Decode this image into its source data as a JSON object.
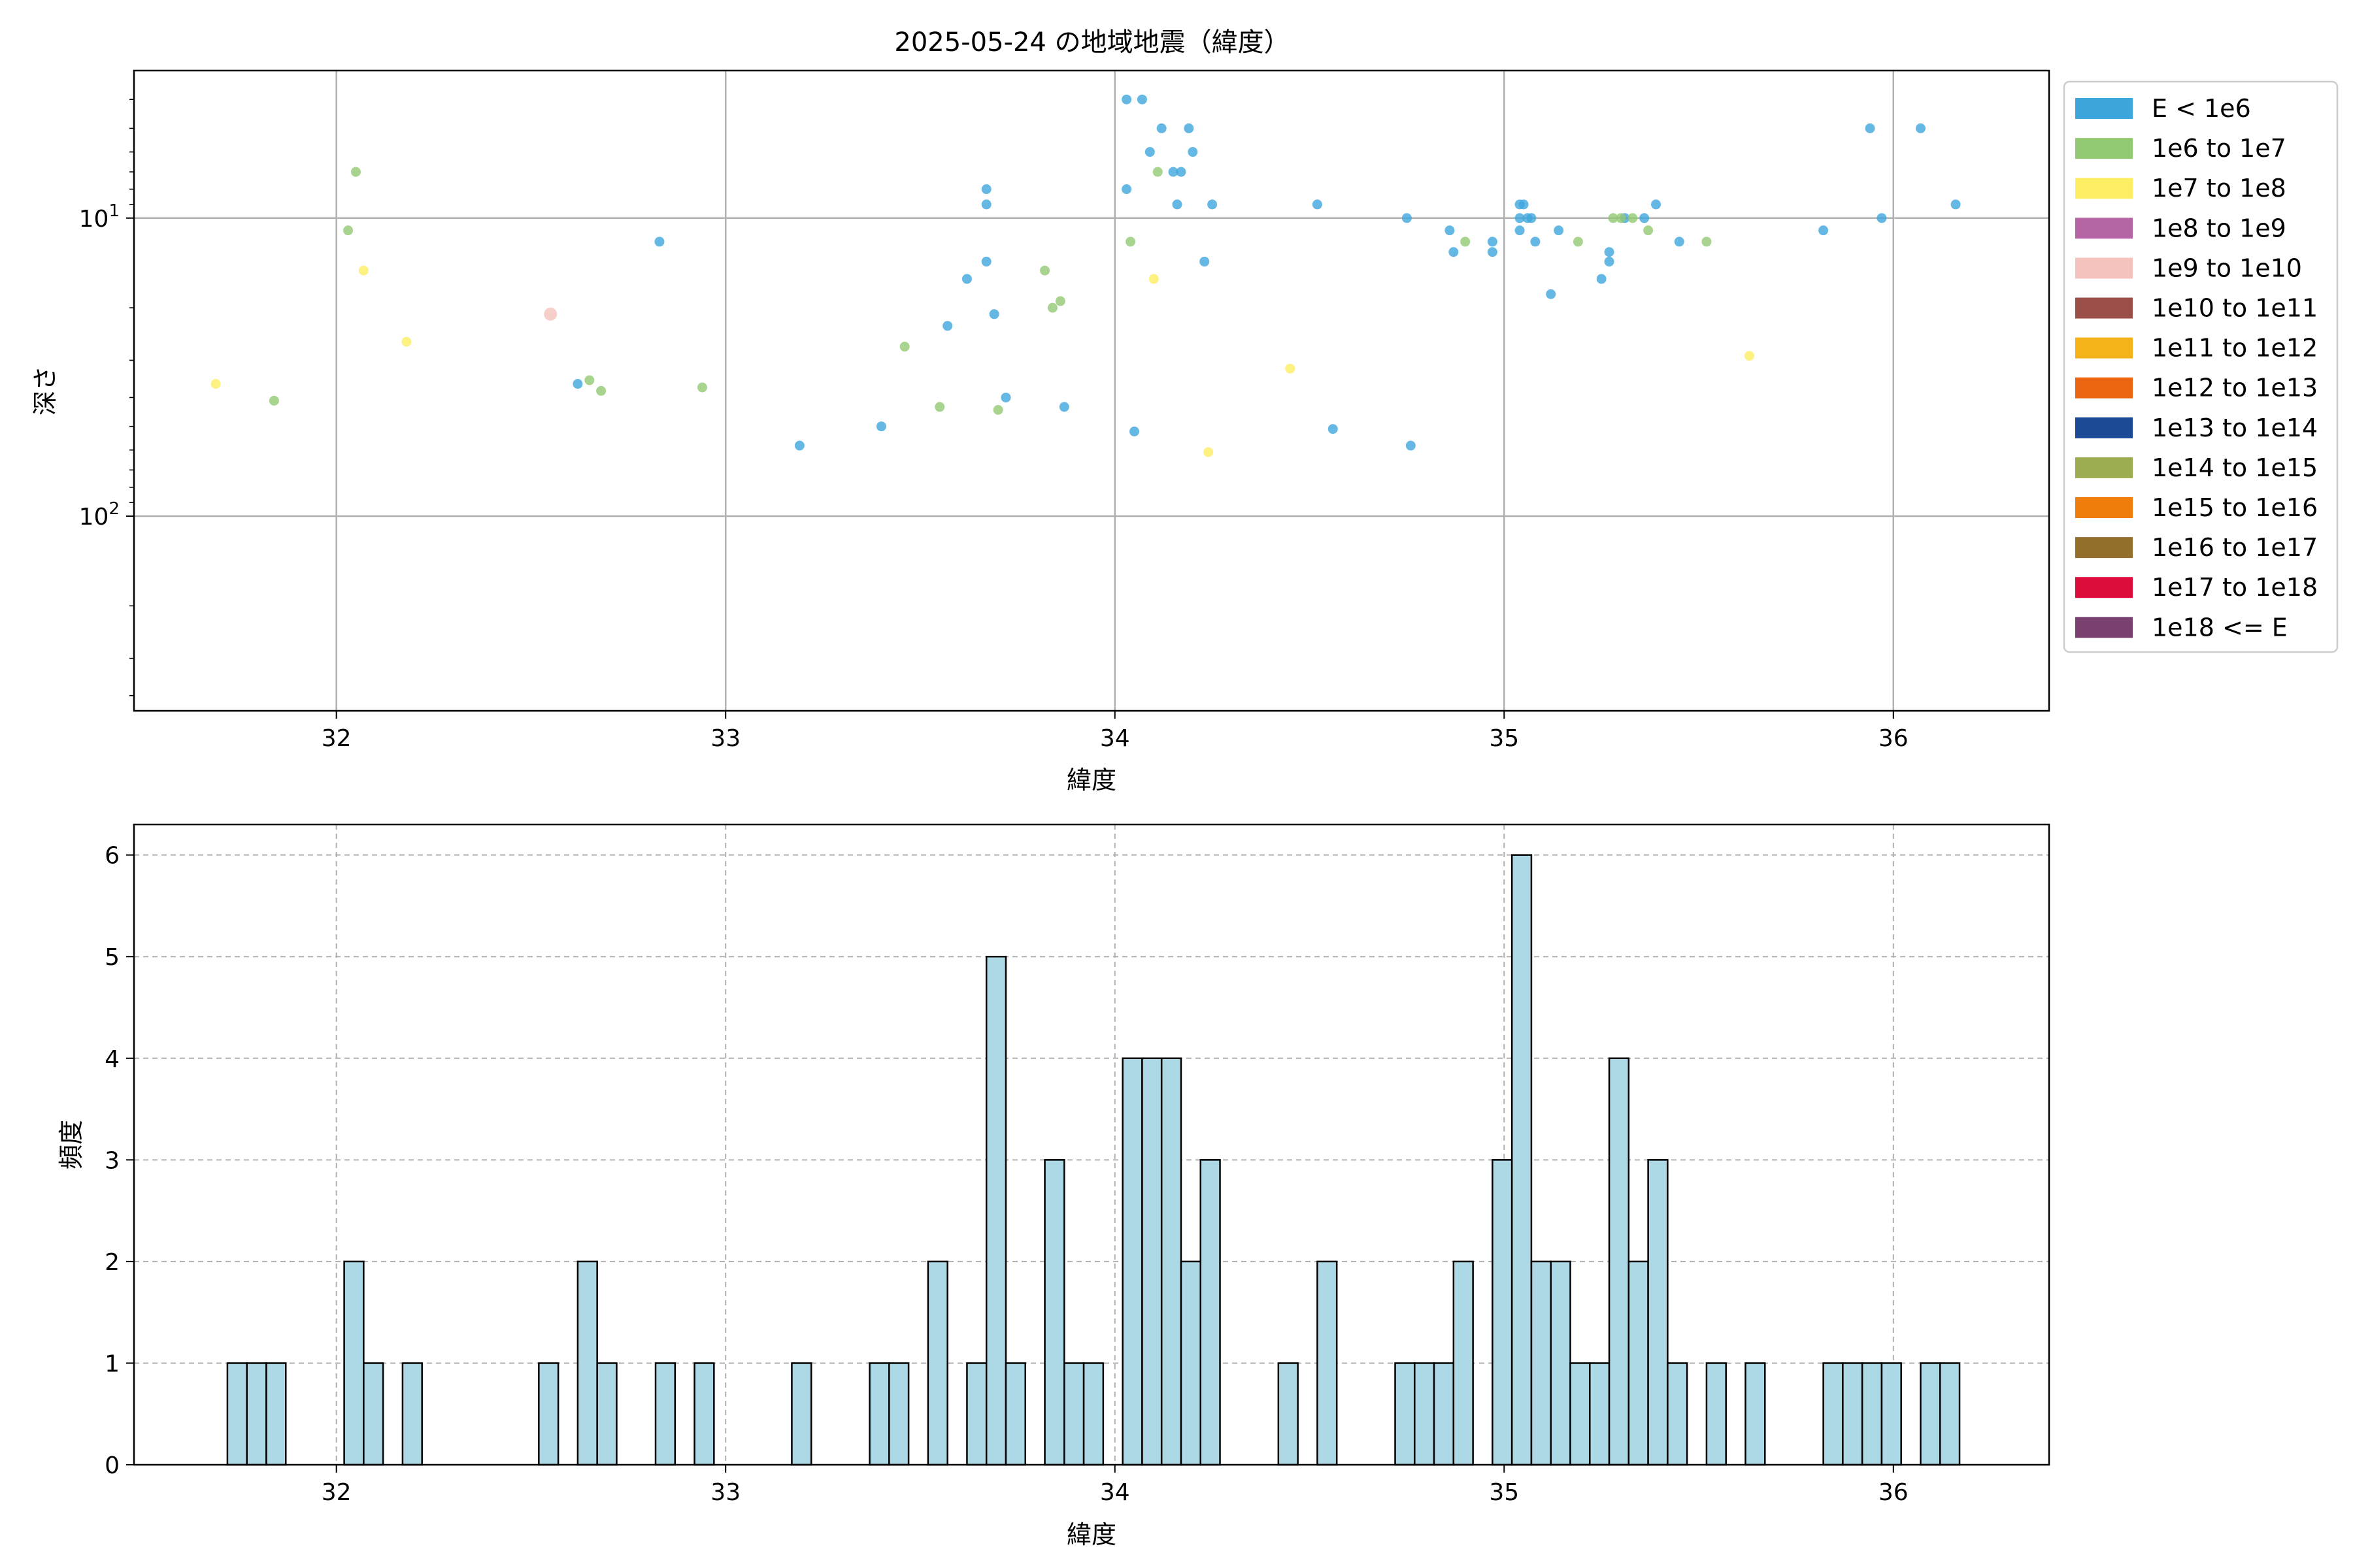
{
  "chart_data": [
    {
      "type": "scatter",
      "title": "2025-05-24 の地域地震（緯度）",
      "xlabel": "緯度",
      "ylabel": "深さ",
      "xlim": [
        31.48,
        36.4
      ],
      "ylim": [
        450,
        3.2
      ],
      "y_scale": "log",
      "y_inverted": true,
      "grid": true,
      "legend_placement": "outside-right",
      "x_ticks": [
        "32",
        "33",
        "34",
        "35",
        "36"
      ],
      "y_ticks": [
        {
          "value": 10,
          "label": "10^1"
        },
        {
          "value": 100,
          "label": "10^2"
        }
      ],
      "legend": [
        {
          "label": "E < 1e6",
          "color": "#3fa6dc"
        },
        {
          "label": "1e6 to 1e7",
          "color": "#93c973"
        },
        {
          "label": "1e7 to 1e8",
          "color": "#fdee63"
        },
        {
          "label": "1e8 to 1e9",
          "color": "#b565a4"
        },
        {
          "label": "1e9 to 1e10",
          "color": "#f5c3bd"
        },
        {
          "label": "1e10 to 1e11",
          "color": "#9a5048"
        },
        {
          "label": "1e11 to 1e12",
          "color": "#f6b319"
        },
        {
          "label": "1e12 to 1e13",
          "color": "#ec6513"
        },
        {
          "label": "1e13 to 1e14",
          "color": "#1d4a94"
        },
        {
          "label": "1e14 to 1e15",
          "color": "#9bac52"
        },
        {
          "label": "1e15 to 1e16",
          "color": "#ee7d0c"
        },
        {
          "label": "1e16 to 1e17",
          "color": "#946e2b"
        },
        {
          "label": "1e17 to 1e18",
          "color": "#dd0c3b"
        },
        {
          "label": "1e18 <= E",
          "color": "#7a4170"
        }
      ],
      "series": [
        {
          "class": 0,
          "points": [
            [
              32.62,
              36
            ],
            [
              32.83,
              12
            ],
            [
              33.19,
              58
            ],
            [
              33.4,
              50
            ],
            [
              33.57,
              23
            ],
            [
              33.62,
              16
            ],
            [
              33.67,
              14
            ],
            [
              33.67,
              9
            ],
            [
              33.67,
              8
            ],
            [
              33.69,
              21
            ],
            [
              33.72,
              40
            ],
            [
              33.87,
              43
            ],
            [
              34.03,
              8
            ],
            [
              34.03,
              4
            ],
            [
              34.05,
              52
            ],
            [
              34.07,
              4
            ],
            [
              34.09,
              6
            ],
            [
              34.12,
              5
            ],
            [
              34.15,
              7
            ],
            [
              34.16,
              9
            ],
            [
              34.17,
              7
            ],
            [
              34.19,
              5
            ],
            [
              34.2,
              6
            ],
            [
              34.23,
              14
            ],
            [
              34.25,
              9
            ],
            [
              34.52,
              9
            ],
            [
              34.56,
              51
            ],
            [
              34.75,
              10
            ],
            [
              34.76,
              58
            ],
            [
              34.86,
              11
            ],
            [
              34.87,
              13
            ],
            [
              34.97,
              12
            ],
            [
              34.97,
              13
            ],
            [
              35.04,
              9
            ],
            [
              35.04,
              10
            ],
            [
              35.04,
              11
            ],
            [
              35.05,
              9
            ],
            [
              35.06,
              10
            ],
            [
              35.07,
              10
            ],
            [
              35.08,
              12
            ],
            [
              35.12,
              18
            ],
            [
              35.14,
              11
            ],
            [
              35.25,
              16
            ],
            [
              35.27,
              14
            ],
            [
              35.27,
              13
            ],
            [
              35.31,
              10
            ],
            [
              35.36,
              10
            ],
            [
              35.39,
              9
            ],
            [
              35.45,
              12
            ],
            [
              35.82,
              11
            ],
            [
              35.94,
              5
            ],
            [
              35.97,
              10
            ],
            [
              36.07,
              5
            ],
            [
              36.16,
              9
            ]
          ]
        },
        {
          "class": 1,
          "points": [
            [
              31.84,
              41
            ],
            [
              32.03,
              11
            ],
            [
              32.05,
              7
            ],
            [
              32.65,
              35
            ],
            [
              32.68,
              38
            ],
            [
              32.94,
              37
            ],
            [
              33.46,
              27
            ],
            [
              33.55,
              43
            ],
            [
              33.7,
              44
            ],
            [
              33.82,
              15
            ],
            [
              33.84,
              20
            ],
            [
              33.86,
              19
            ],
            [
              34.04,
              12
            ],
            [
              34.11,
              7
            ],
            [
              34.9,
              12
            ],
            [
              35.19,
              12
            ],
            [
              35.28,
              10
            ],
            [
              35.3,
              10
            ],
            [
              35.33,
              10
            ],
            [
              35.37,
              11
            ],
            [
              35.52,
              12
            ]
          ]
        },
        {
          "class": 2,
          "points": [
            [
              31.69,
              36
            ],
            [
              32.07,
              15
            ],
            [
              32.18,
              26
            ],
            [
              34.1,
              16
            ],
            [
              34.24,
              61
            ],
            [
              34.45,
              32
            ],
            [
              35.63,
              29
            ]
          ]
        },
        {
          "class": 4,
          "points": [
            [
              32.55,
              21
            ]
          ]
        }
      ]
    },
    {
      "type": "bar",
      "title": "",
      "xlabel": "緯度",
      "ylabel": "頻度",
      "xlim": [
        31.48,
        36.4
      ],
      "ylim": [
        0,
        6.3
      ],
      "grid": true,
      "grid_style": "dashed",
      "bar_color": "#add8e6",
      "edge_color": "#000000",
      "bin_width": 0.05,
      "x_ticks": [
        "32",
        "33",
        "34",
        "35",
        "36"
      ],
      "y_ticks": [
        "0",
        "1",
        "2",
        "3",
        "4",
        "5",
        "6"
      ],
      "bins": [
        [
          31.72,
          1
        ],
        [
          31.77,
          1
        ],
        [
          31.82,
          1
        ],
        [
          32.02,
          2
        ],
        [
          32.07,
          1
        ],
        [
          32.17,
          1
        ],
        [
          32.52,
          1
        ],
        [
          32.62,
          2
        ],
        [
          32.67,
          1
        ],
        [
          32.82,
          1
        ],
        [
          32.92,
          1
        ],
        [
          33.17,
          1
        ],
        [
          33.37,
          1
        ],
        [
          33.42,
          1
        ],
        [
          33.52,
          2
        ],
        [
          33.62,
          1
        ],
        [
          33.67,
          5
        ],
        [
          33.72,
          1
        ],
        [
          33.82,
          3
        ],
        [
          33.87,
          1
        ],
        [
          33.92,
          1
        ],
        [
          34.02,
          4
        ],
        [
          34.07,
          4
        ],
        [
          34.12,
          4
        ],
        [
          34.17,
          2
        ],
        [
          34.22,
          3
        ],
        [
          34.42,
          1
        ],
        [
          34.52,
          2
        ],
        [
          34.72,
          1
        ],
        [
          34.77,
          1
        ],
        [
          34.82,
          1
        ],
        [
          34.87,
          2
        ],
        [
          34.97,
          3
        ],
        [
          35.02,
          6
        ],
        [
          35.07,
          2
        ],
        [
          35.12,
          2
        ],
        [
          35.17,
          1
        ],
        [
          35.22,
          1
        ],
        [
          35.27,
          4
        ],
        [
          35.32,
          2
        ],
        [
          35.37,
          3
        ],
        [
          35.42,
          1
        ],
        [
          35.52,
          1
        ],
        [
          35.62,
          1
        ],
        [
          35.82,
          1
        ],
        [
          35.87,
          1
        ],
        [
          35.92,
          1
        ],
        [
          35.97,
          1
        ],
        [
          36.07,
          1
        ],
        [
          36.12,
          1
        ]
      ]
    }
  ]
}
